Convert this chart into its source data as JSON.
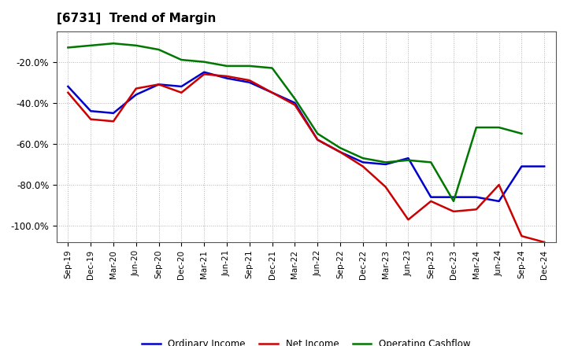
{
  "title": "[6731]  Trend of Margin",
  "title_fontsize": 11,
  "background_color": "#ffffff",
  "plot_bg_color": "#ffffff",
  "grid_color": "#aaaaaa",
  "ylim": [
    -108,
    -5
  ],
  "yticks": [
    -100,
    -80,
    -60,
    -40,
    -20
  ],
  "ytick_labels": [
    "-100.0%",
    "-80.0%",
    "-60.0%",
    "-40.0%",
    "-20.0%"
  ],
  "x_labels": [
    "Sep-19",
    "Dec-19",
    "Mar-20",
    "Jun-20",
    "Sep-20",
    "Dec-20",
    "Mar-21",
    "Jun-21",
    "Sep-21",
    "Dec-21",
    "Mar-22",
    "Jun-22",
    "Sep-22",
    "Dec-22",
    "Mar-23",
    "Jun-23",
    "Sep-23",
    "Dec-23",
    "Mar-24",
    "Jun-24",
    "Sep-24",
    "Dec-24"
  ],
  "ordinary_income": [
    -32,
    -44,
    -45,
    -36,
    -31,
    -32,
    -25,
    -28,
    -30,
    -35,
    -40,
    -58,
    -64,
    -69,
    -70,
    -67,
    -86,
    -86,
    -86,
    -88,
    -71,
    -71
  ],
  "net_income": [
    -35,
    -48,
    -49,
    -33,
    -31,
    -35,
    -26,
    -27,
    -29,
    -35,
    -41,
    -58,
    -64,
    -71,
    -81,
    -97,
    -88,
    -93,
    -92,
    -80,
    -105,
    -108
  ],
  "operating_cashflow": [
    -13,
    -12,
    -11,
    -12,
    -14,
    -19,
    -20,
    -22,
    -22,
    -23,
    -38,
    -55,
    -62,
    -67,
    -69,
    -68,
    -69,
    -88,
    -52,
    -52,
    -55,
    null
  ],
  "colors": {
    "ordinary_income": "#0000cc",
    "net_income": "#cc0000",
    "operating_cashflow": "#007700"
  },
  "linewidth": 1.8,
  "legend_labels": [
    "Ordinary Income",
    "Net Income",
    "Operating Cashflow"
  ]
}
